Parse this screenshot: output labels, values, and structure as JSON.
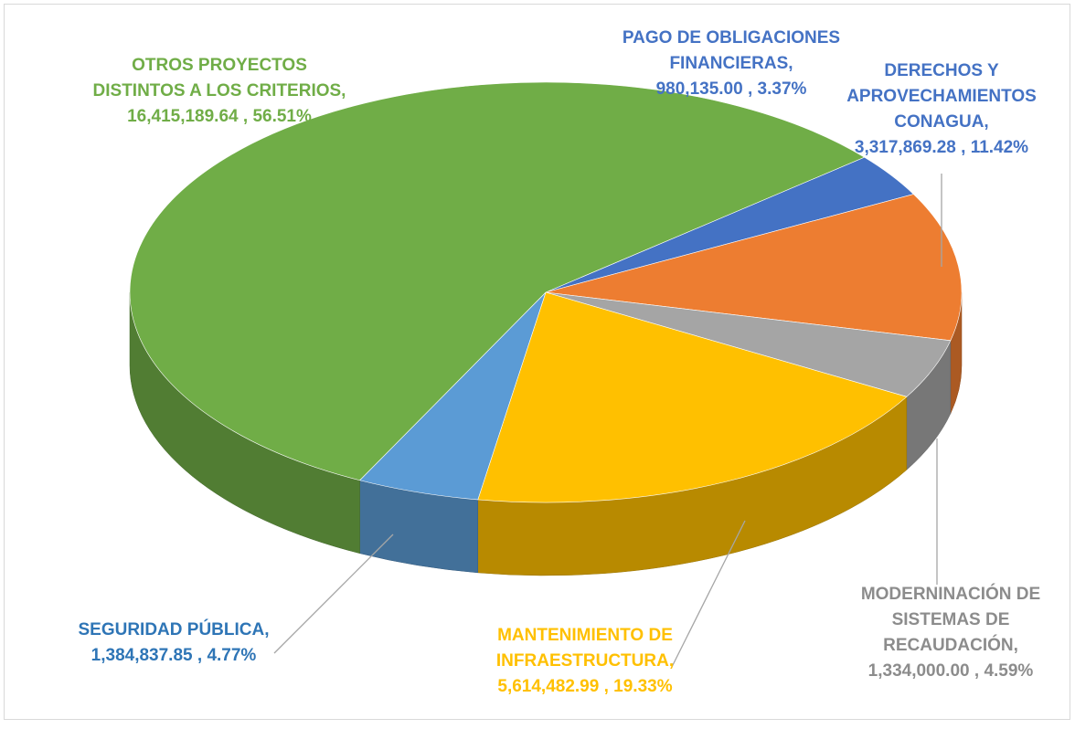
{
  "chart_data": {
    "type": "pie",
    "categories": [
      [
        "PAGO DE OBLIGACIONES",
        "FINANCIERAS,"
      ],
      [
        "DERECHOS Y",
        "APROVECHAMIENTOS",
        "CONAGUA,"
      ],
      [
        "MODERNINACIÓN DE",
        "SISTEMAS DE",
        "RECAUDACIÓN,"
      ],
      [
        "MANTENIMIENTO DE",
        "INFRAESTRUCTURA,"
      ],
      [
        "SEGURIDAD PÚBLICA,"
      ],
      [
        "OTROS PROYECTOS",
        "DISTINTOS A LOS CRITERIOS,"
      ]
    ],
    "values": [
      980135.0,
      3317869.28,
      1334000.0,
      5614482.99,
      1384837.85,
      16415189.64
    ],
    "value_labels": [
      "980,135.00",
      "3,317,869.28",
      "1,334,000.00",
      "5,614,482.99",
      "1,384,837.85",
      "16,415,189.64"
    ],
    "separator": " , ",
    "percents": [
      3.37,
      11.42,
      4.59,
      19.33,
      4.77,
      56.51
    ],
    "percent_labels": [
      "3.37%",
      "11.42%",
      "4.59%",
      "19.33%",
      "4.77%",
      "56.51%"
    ],
    "colors": [
      "#4472c4",
      "#ed7d31",
      "#a5a5a5",
      "#ffc000",
      "#5b9bd5",
      "#70ad47"
    ],
    "label_colors": [
      "#4472c4",
      "#4472c4",
      "#8c8c8c",
      "#ffc000",
      "#2e75b6",
      "#70ad47"
    ]
  }
}
